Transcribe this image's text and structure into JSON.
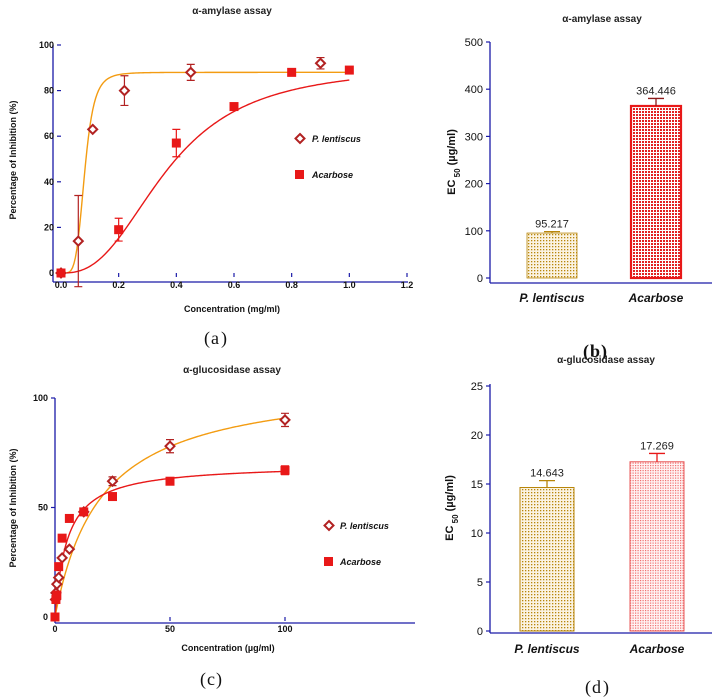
{
  "colors": {
    "plant": "#b8860b",
    "plant_curve": "#f39c12",
    "plant_marker": "#b22222",
    "acarbose": "#e81818",
    "axis": "#1a1aa8",
    "error": "#8b1a1a"
  },
  "chart_data": [
    {
      "id": "a",
      "type": "scatter",
      "panel_label": "a",
      "title": "α-amylase assay",
      "xlabel": "Concentration (mg/ml)",
      "ylabel": "Percentage of Inhibition (%)",
      "xlim": [
        0,
        1.2
      ],
      "ylim": [
        0,
        100
      ],
      "xticks": [
        "0.0",
        "0.2",
        "0.4",
        "0.6",
        "0.8",
        "1.0",
        "1.2"
      ],
      "yticks": [
        "0",
        "20",
        "40",
        "60",
        "80",
        "100"
      ],
      "legend_position": "right",
      "series": [
        {
          "name": "P. lentiscus",
          "marker": "diamond",
          "x": [
            0,
            0.06,
            0.11,
            0.22,
            0.45,
            0.9
          ],
          "y": [
            0,
            14,
            63,
            80,
            88,
            92
          ],
          "err": [
            0,
            20,
            0,
            6.5,
            3.5,
            2.5
          ]
        },
        {
          "name": "Acarbose",
          "marker": "square",
          "x": [
            0,
            0.2,
            0.4,
            0.6,
            0.8,
            1.0
          ],
          "y": [
            0,
            19,
            57,
            73,
            88,
            89
          ],
          "err": [
            0,
            5,
            6,
            0,
            0,
            0
          ]
        }
      ]
    },
    {
      "id": "b",
      "type": "bar",
      "panel_label": "b",
      "title": "α-amylase assay",
      "xlabel": "",
      "ylabel": "EC 50 (µg/ml)",
      "ylim": [
        0,
        500
      ],
      "yticks": [
        "0",
        "100",
        "200",
        "300",
        "400",
        "500"
      ],
      "categories": [
        "P. lentiscus",
        "Acarbose"
      ],
      "values": [
        95.217,
        364.446
      ],
      "value_labels": [
        "95.217",
        "364.446"
      ],
      "err": [
        3,
        16
      ]
    },
    {
      "id": "c",
      "type": "scatter",
      "panel_label": "c",
      "title": "α-glucosidase assay",
      "xlabel": "Concentration (µg/ml)",
      "ylabel": "Percentage of Inhibition (%)",
      "xlim": [
        0,
        150
      ],
      "ylim": [
        0,
        100
      ],
      "xticks": [
        "0",
        "50",
        "100"
      ],
      "yticks": [
        "0",
        "50",
        "100"
      ],
      "legend_position": "right",
      "series": [
        {
          "name": "P. lentiscus",
          "marker": "diamond",
          "x": [
            0.2,
            0.4,
            0.8,
            1.6,
            3.1,
            6.25,
            12.5,
            25,
            50,
            100
          ],
          "y": [
            8,
            11,
            15,
            18,
            27,
            31,
            48,
            62,
            78,
            90
          ],
          "err": [
            0,
            0,
            0,
            0,
            0,
            0,
            0,
            2,
            3,
            3
          ]
        },
        {
          "name": "Acarbose",
          "marker": "square",
          "x": [
            0,
            0.4,
            0.8,
            1.6,
            3.1,
            6.25,
            12.5,
            25,
            50,
            100
          ],
          "y": [
            0,
            8,
            10,
            23,
            36,
            45,
            48,
            55,
            62,
            67
          ],
          "err": [
            0,
            0,
            0,
            0,
            0,
            0,
            0,
            0,
            0,
            2
          ]
        }
      ]
    },
    {
      "id": "d",
      "type": "bar",
      "panel_label": "d",
      "title": "α-glucosidase assay",
      "xlabel": "",
      "ylabel": "EC 50 (µg/ml)",
      "ylim": [
        0,
        25
      ],
      "yticks": [
        "0",
        "5",
        "10",
        "15",
        "20",
        "25"
      ],
      "categories": [
        "P. lentiscus",
        "Acarbose"
      ],
      "values": [
        14.643,
        17.269
      ],
      "value_labels": [
        "14.643",
        "17.269"
      ],
      "err": [
        0.7,
        0.85
      ]
    }
  ]
}
